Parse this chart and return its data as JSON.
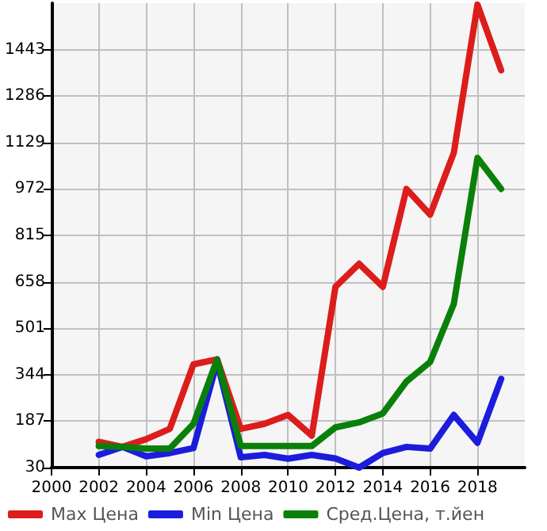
{
  "chart_data": {
    "type": "line",
    "x": [
      2002,
      2003,
      2004,
      2005,
      2006,
      2007,
      2008,
      2009,
      2010,
      2011,
      2012,
      2013,
      2014,
      2015,
      2016,
      2017,
      2018,
      2019
    ],
    "series": [
      {
        "name": "Max Цена",
        "color": "#dd1c1c",
        "values": [
          117,
          100,
          126,
          161,
          379,
          396,
          161,
          178,
          208,
          138,
          641,
          719,
          641,
          972,
          885,
          1094,
          1595,
          1373
        ]
      },
      {
        "name": "Min Цена",
        "color": "#1c1cdd",
        "values": [
          73,
          100,
          68,
          79,
          96,
          387,
          65,
          73,
          60,
          73,
          61,
          30,
          79,
          100,
          94,
          208,
          114,
          330
        ]
      },
      {
        "name": "Сред.Цена, т.йен",
        "color": "#0a800a",
        "values": [
          103,
          100,
          94,
          94,
          178,
          396,
          103,
          103,
          103,
          103,
          166,
          183,
          213,
          321,
          387,
          583,
          1077,
          972
        ]
      }
    ],
    "xlim": [
      2000,
      2020
    ],
    "xticks": [
      2000,
      2002,
      2004,
      2006,
      2008,
      2010,
      2012,
      2014,
      2016,
      2018
    ],
    "ylim": [
      30,
      1600
    ],
    "yticks": [
      30,
      187,
      344,
      501,
      658,
      815,
      972,
      1129,
      1286,
      1443
    ],
    "grid": true,
    "legend": "bottom",
    "marker": "none",
    "line_style": "solid"
  }
}
